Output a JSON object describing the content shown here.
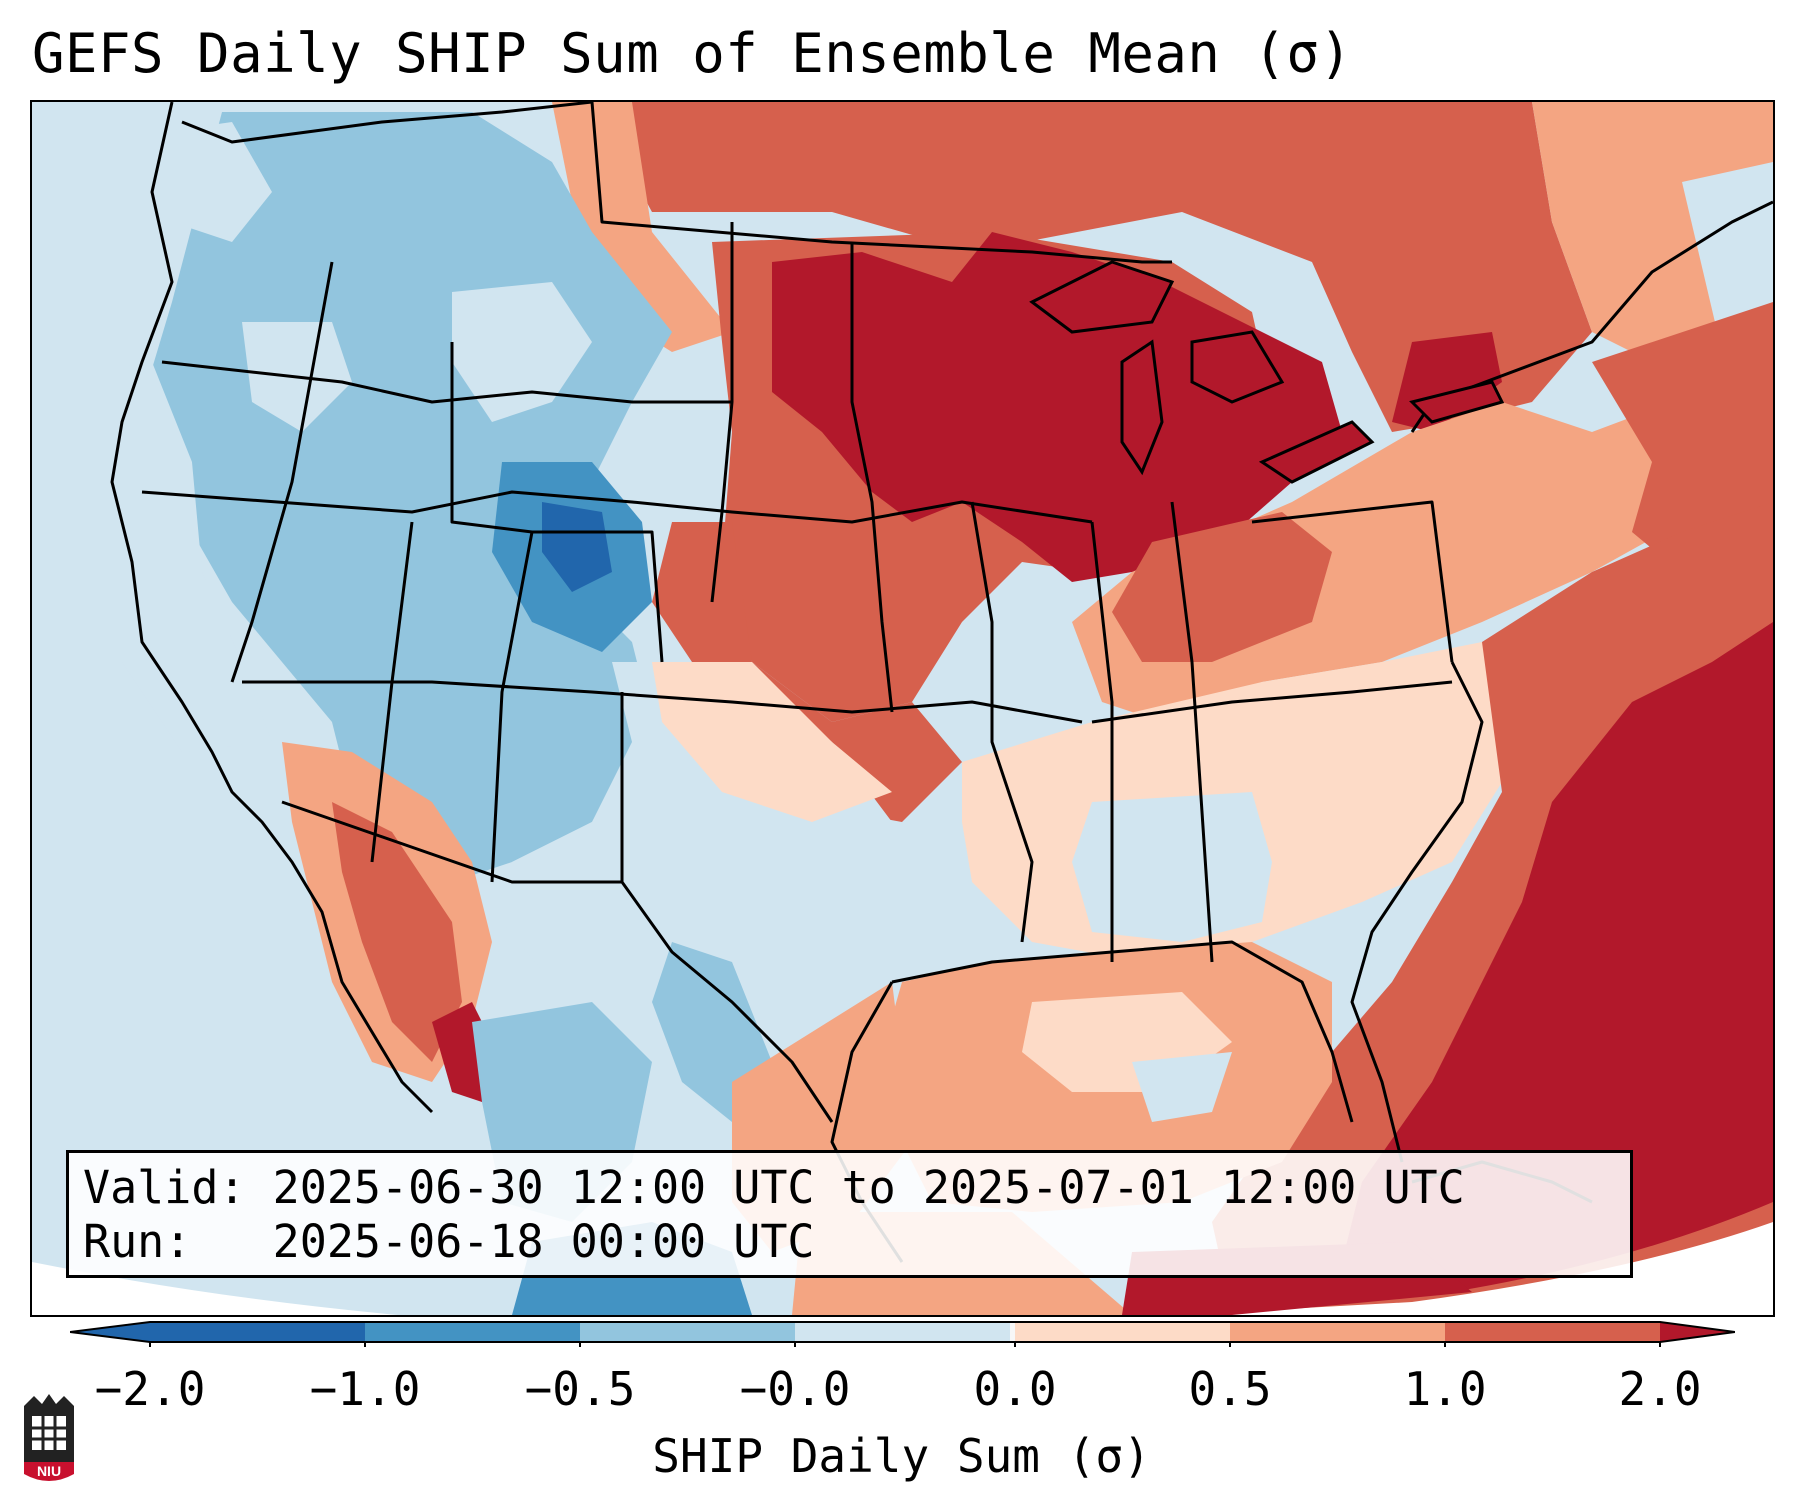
{
  "title": "GEFS Daily SHIP Sum of Ensemble Mean (σ)",
  "info": {
    "valid_label": "Valid:",
    "valid_value": "2025-06-30 12:00 UTC to 2025-07-01 12:00 UTC",
    "run_label": "Run:",
    "run_value": "2025-06-18 00:00 UTC"
  },
  "colorbar": {
    "label": "SHIP Daily Sum (σ)",
    "ticks": [
      "−2.0",
      "−1.0",
      "−0.5",
      "−0.0",
      "0.0",
      "0.5",
      "1.0",
      "2.0"
    ],
    "colors": [
      "#2166ac",
      "#4393c3",
      "#92c5de",
      "#d1e5f0",
      "#fddbc7",
      "#f4a582",
      "#d6604d",
      "#b2182b"
    ],
    "ocean_color": "#d1e5f0"
  },
  "logo": {
    "text": "NIU",
    "icon": "niu-logo-icon"
  },
  "map": {
    "region": "Continental United States",
    "anomaly_regions": [
      {
        "name": "pacific-northwest",
        "level": "-0.5"
      },
      {
        "name": "great-basin",
        "level": "-0.5"
      },
      {
        "name": "colorado-rockies",
        "level": "-1.0"
      },
      {
        "name": "southwest",
        "level": "-0.5"
      },
      {
        "name": "texas",
        "level": "-0.0"
      },
      {
        "name": "southern-plains",
        "level": "0.5"
      },
      {
        "name": "central-plains",
        "level": "1.0"
      },
      {
        "name": "upper-midwest",
        "level": "2.0"
      },
      {
        "name": "great-lakes",
        "level": "2.0"
      },
      {
        "name": "ohio-valley",
        "level": "1.0"
      },
      {
        "name": "southeast",
        "level": "0.0"
      },
      {
        "name": "northeast",
        "level": "0.5"
      },
      {
        "name": "gulf-of-mexico",
        "level": "0.5"
      },
      {
        "name": "western-atlantic",
        "level": "2.0"
      },
      {
        "name": "mexico-west-coast",
        "level": "1.0"
      }
    ]
  }
}
